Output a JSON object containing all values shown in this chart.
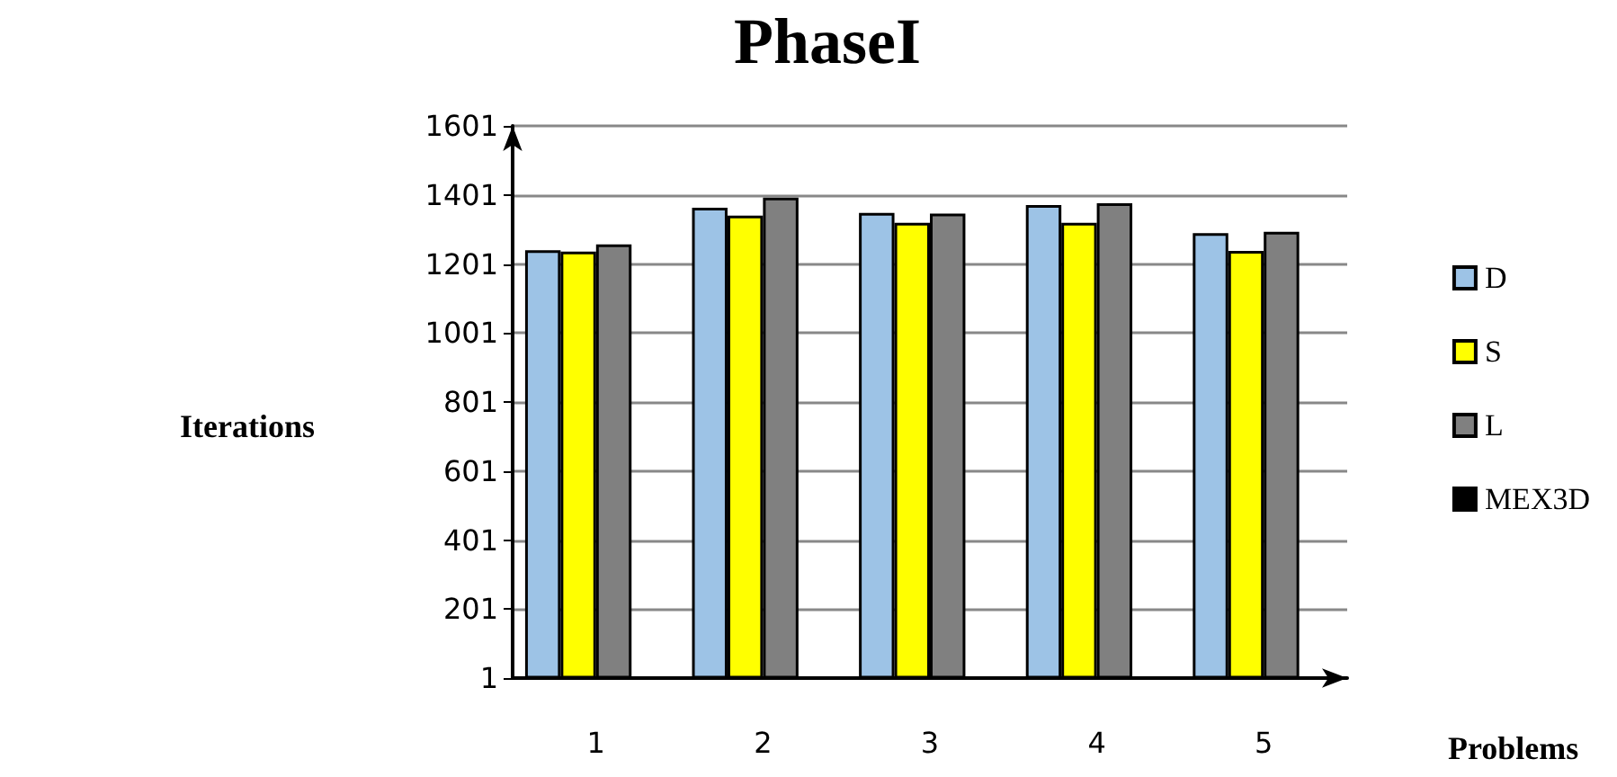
{
  "chart_data": {
    "type": "bar",
    "title": "PhaseI",
    "xlabel": "Problems",
    "ylabel": "Iterations",
    "categories": [
      "1",
      "2",
      "3",
      "4",
      "5"
    ],
    "series": [
      {
        "name": "D",
        "color": "#9dc3e6",
        "values": [
          1241,
          1364,
          1349,
          1372,
          1290
        ]
      },
      {
        "name": "S",
        "color": "#ffff00",
        "values": [
          1237,
          1341,
          1320,
          1320,
          1239
        ]
      },
      {
        "name": "L",
        "color": "#808080",
        "values": [
          1258,
          1393,
          1347,
          1377,
          1294
        ]
      },
      {
        "name": "MEX3D",
        "color": "#000000",
        "values": [
          5,
          5,
          5,
          5,
          5
        ]
      }
    ],
    "ylim": [
      1,
      1601
    ],
    "yticks": [
      1,
      201,
      401,
      601,
      801,
      1001,
      1201,
      1401,
      1601
    ],
    "grid": "y",
    "legend": "right"
  }
}
